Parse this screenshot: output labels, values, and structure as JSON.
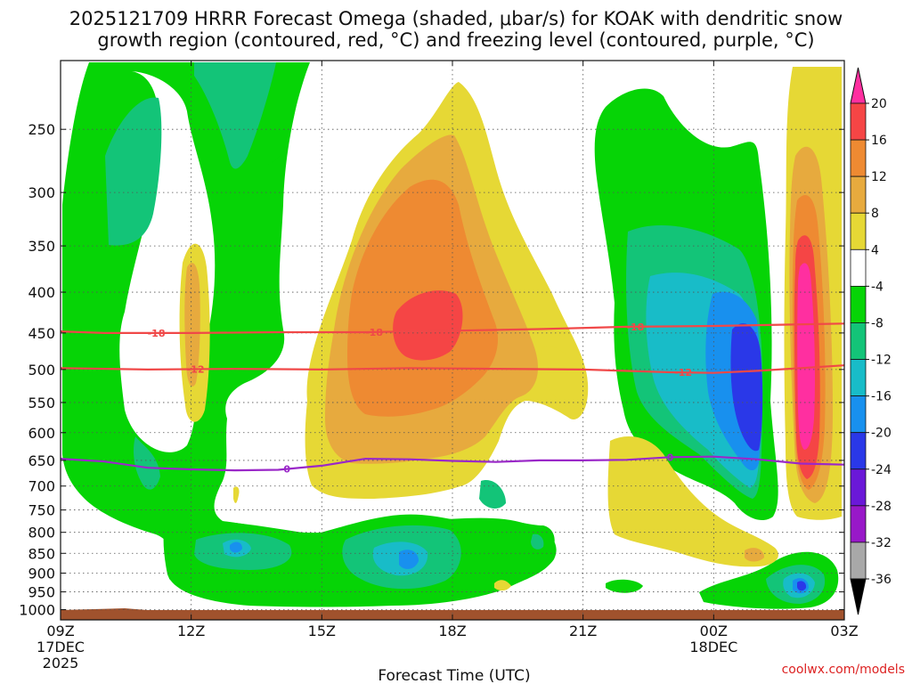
{
  "title": {
    "line1": "2025121709 HRRR Forecast Omega (shaded, μbar/s) for KOAK with dendritic snow",
    "line2": "growth region (contoured, red, °C) and freezing level (contoured, purple, °C)"
  },
  "credit": "coolwx.com/models",
  "chart_data": {
    "type": "heatmap",
    "title": "2025121709 HRRR Forecast Omega (shaded, μbar/s) for KOAK with dendritic snow growth region (contoured, red, °C) and freezing level (contoured, purple, °C)",
    "xlabel": "Forecast Time (UTC)",
    "ylabel": "",
    "x_range_hours": [
      0,
      18
    ],
    "x_ticks": [
      {
        "hour": 0,
        "label": "09Z",
        "sub1": "17DEC",
        "sub2": "2025"
      },
      {
        "hour": 3,
        "label": "12Z",
        "sub1": "",
        "sub2": ""
      },
      {
        "hour": 6,
        "label": "15Z",
        "sub1": "",
        "sub2": ""
      },
      {
        "hour": 9,
        "label": "18Z",
        "sub1": "",
        "sub2": ""
      },
      {
        "hour": 12,
        "label": "21Z",
        "sub1": "",
        "sub2": ""
      },
      {
        "hour": 15,
        "label": "00Z",
        "sub1": "18DEC",
        "sub2": ""
      },
      {
        "hour": 18,
        "label": "03Z",
        "sub1": "",
        "sub2": ""
      }
    ],
    "y_axis": "pressure (hPa), log scale, inverted",
    "y_range": [
      1030,
      205
    ],
    "y_ticks": [
      250,
      300,
      350,
      400,
      450,
      500,
      550,
      600,
      650,
      700,
      750,
      800,
      850,
      900,
      950,
      1000
    ],
    "colorbar": {
      "labels": [
        "20",
        "16",
        "12",
        "8",
        "4",
        "-4",
        "-8",
        "-12",
        "-16",
        "-20",
        "-24",
        "-28",
        "-32",
        "-36"
      ],
      "colors": [
        "#ff2fa0",
        "#f54545",
        "#ee8a32",
        "#e7aa3e",
        "#e6d835",
        "#ffffff",
        "#06d406",
        "#13c478",
        "#18bcc8",
        "#1890ee",
        "#2a38e8",
        "#6a18d8",
        "#9818c8",
        "#a8a8a8",
        "#000000"
      ]
    },
    "shading_regions": [
      {
        "level": "-8 to -4",
        "color": "#06d406",
        "description": "broad weak ascent"
      },
      {
        "level": "-12 to -8",
        "color": "#13c478"
      },
      {
        "level": "-16 to -12",
        "color": "#18bcc8"
      },
      {
        "level": "-20 to -16",
        "color": "#1890ee"
      },
      {
        "level": "-24 to -20",
        "color": "#2a38e8"
      },
      {
        "level": "4 to 8",
        "color": "#e6d835",
        "description": "weak descent"
      },
      {
        "level": "8 to 12",
        "color": "#e7aa3e"
      },
      {
        "level": "12 to 16",
        "color": "#ee8a32"
      },
      {
        "level": "16 to 20",
        "color": "#f54545"
      },
      {
        "level": "> 20",
        "color": "#ff2fa0"
      }
    ],
    "contours": [
      {
        "name": "dendritic growth -18°C",
        "label": "-18",
        "color": "#f04848",
        "points": [
          [
            0,
            448
          ],
          [
            1,
            450
          ],
          [
            3,
            450
          ],
          [
            5,
            449
          ],
          [
            7,
            449
          ],
          [
            9,
            447
          ],
          [
            11,
            445
          ],
          [
            13,
            442
          ],
          [
            15,
            441
          ],
          [
            18,
            438
          ]
        ],
        "label_hours": [
          2.2,
          7.2,
          13.2
        ]
      },
      {
        "name": "dendritic growth -12°C",
        "label": "-12",
        "color": "#f04848",
        "points": [
          [
            0,
            498
          ],
          [
            2,
            500
          ],
          [
            4,
            499
          ],
          [
            6,
            500
          ],
          [
            8,
            498
          ],
          [
            10,
            499
          ],
          [
            12,
            500
          ],
          [
            14,
            504
          ],
          [
            15,
            505
          ],
          [
            16,
            502
          ],
          [
            18,
            494
          ]
        ],
        "label_hours": [
          3.1,
          14.3
        ]
      },
      {
        "name": "freezing level 0°C",
        "label": "0",
        "color": "#9a28c8",
        "points": [
          [
            0,
            647
          ],
          [
            1,
            652
          ],
          [
            2,
            664
          ],
          [
            3,
            667
          ],
          [
            4,
            669
          ],
          [
            5,
            668
          ],
          [
            6,
            660
          ],
          [
            7,
            647
          ],
          [
            8,
            648
          ],
          [
            9,
            651
          ],
          [
            10,
            653
          ],
          [
            11,
            650
          ],
          [
            12,
            650
          ],
          [
            13,
            649
          ],
          [
            14,
            644
          ],
          [
            15,
            643
          ],
          [
            16,
            648
          ],
          [
            17,
            656
          ],
          [
            18,
            658
          ]
        ],
        "label_hours": [
          5.2,
          14.0
        ]
      }
    ]
  }
}
